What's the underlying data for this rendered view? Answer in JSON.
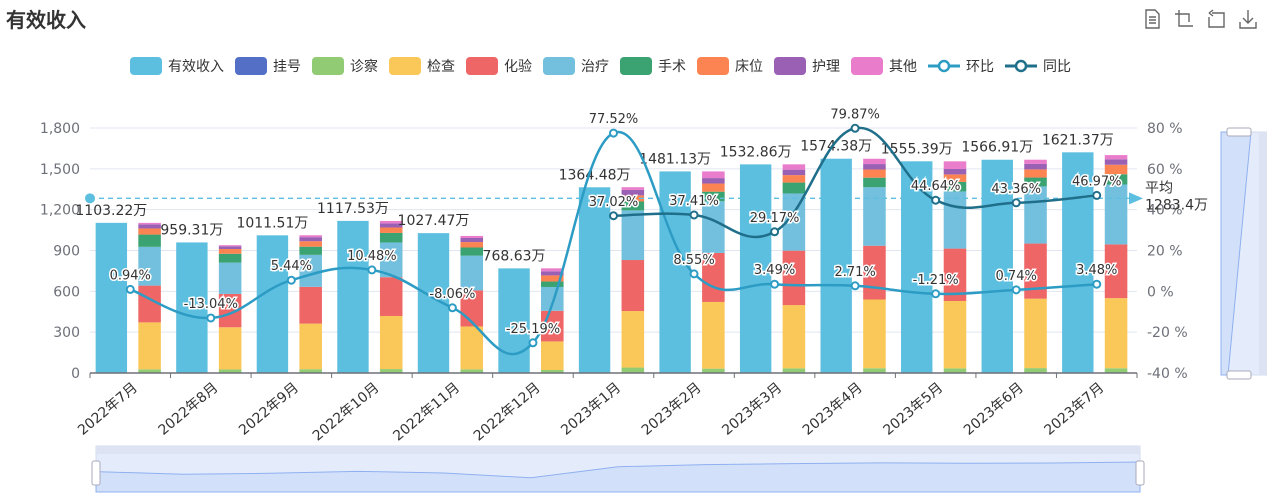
{
  "title": "有效收入",
  "toolbox": [
    {
      "name": "data-view-icon",
      "title": "数据视图"
    },
    {
      "name": "zoom-icon",
      "title": "区域缩放"
    },
    {
      "name": "zoom-reset-icon",
      "title": "区域缩放还原"
    },
    {
      "name": "save-image-icon",
      "title": "保存为图片"
    }
  ],
  "legend": [
    {
      "label": "有效收入",
      "color": "#5dbfdf",
      "type": "bar"
    },
    {
      "label": "挂号",
      "color": "#5470c6",
      "type": "bar"
    },
    {
      "label": "诊察",
      "color": "#91cc75",
      "type": "bar"
    },
    {
      "label": "检查",
      "color": "#fac858",
      "type": "bar"
    },
    {
      "label": "化验",
      "color": "#ee6666",
      "type": "bar"
    },
    {
      "label": "治疗",
      "color": "#73c0de",
      "type": "bar"
    },
    {
      "label": "手术",
      "color": "#3ba272",
      "type": "bar"
    },
    {
      "label": "床位",
      "color": "#fc8452",
      "type": "bar"
    },
    {
      "label": "护理",
      "color": "#9a60b4",
      "type": "bar"
    },
    {
      "label": "其他",
      "color": "#ea7ccc",
      "type": "bar"
    },
    {
      "label": "环比",
      "color": "#2d9cc4",
      "type": "line"
    },
    {
      "label": "同比",
      "color": "#1f6f8b",
      "type": "line"
    }
  ],
  "chart_data": {
    "type": "bar",
    "title": "有效收入",
    "categories": [
      "2022年7月",
      "2022年8月",
      "2022年9月",
      "2022年10月",
      "2022年11月",
      "2022年12月",
      "2023年1月",
      "2023年2月",
      "2023年3月",
      "2023年4月",
      "2023年5月",
      "2023年6月",
      "2023年7月"
    ],
    "yaxis_left": {
      "min": 0,
      "max": 1800,
      "ticks": [
        "0",
        "300",
        "600",
        "900",
        "1,200",
        "1,500",
        "1,800"
      ],
      "values": [
        0,
        300,
        600,
        900,
        1200,
        1500,
        1800
      ]
    },
    "yaxis_right": {
      "min": -40,
      "max": 80,
      "ticks": [
        "-40 %",
        "-20 %",
        "0 %",
        "20 %",
        "40 %",
        "60 %",
        "80 %"
      ],
      "values": [
        -40,
        -20,
        0,
        20,
        40,
        60,
        80
      ]
    },
    "grid": true,
    "legend_position": "top-center",
    "series": [
      {
        "name": "有效收入",
        "stack": "total",
        "values": [
          1103.22,
          959.31,
          1011.51,
          1117.53,
          1027.47,
          768.63,
          1364.48,
          1481.13,
          1532.86,
          1574.38,
          1555.39,
          1566.91,
          1621.37
        ],
        "labels": [
          "1103.22万",
          "959.31万",
          "1011.51万",
          "1117.53万",
          "1027.47万",
          "768.63万",
          "1364.48万",
          "1481.13万",
          "1532.86万",
          "1574.38万",
          "1555.39万",
          "1566.91万",
          "1621.37万"
        ]
      },
      {
        "name": "挂号",
        "stack": "detail",
        "values": [
          2,
          2,
          2,
          2,
          2,
          2,
          2,
          2,
          2,
          2,
          2,
          2,
          2
        ]
      },
      {
        "name": "诊察",
        "stack": "detail",
        "values": [
          25,
          24,
          26,
          27,
          25,
          20,
          38,
          30,
          32,
          33,
          32,
          34,
          33
        ]
      },
      {
        "name": "检查",
        "stack": "detail",
        "values": [
          345,
          310,
          335,
          390,
          315,
          210,
          415,
          490,
          465,
          505,
          495,
          510,
          515
        ]
      },
      {
        "name": "化验",
        "stack": "detail",
        "values": [
          270,
          245,
          270,
          285,
          265,
          225,
          375,
          360,
          400,
          395,
          385,
          405,
          395
        ]
      },
      {
        "name": "治疗",
        "stack": "detail",
        "values": [
          285,
          230,
          235,
          255,
          255,
          175,
          365,
          380,
          420,
          430,
          420,
          420,
          440
        ]
      },
      {
        "name": "手术",
        "stack": "detail",
        "values": [
          90,
          65,
          60,
          70,
          60,
          40,
          65,
          70,
          80,
          70,
          70,
          65,
          75
        ]
      },
      {
        "name": "床位",
        "stack": "detail",
        "values": [
          45,
          35,
          40,
          40,
          40,
          45,
          45,
          60,
          55,
          60,
          55,
          60,
          70
        ]
      },
      {
        "name": "护理",
        "stack": "detail",
        "values": [
          30,
          20,
          30,
          30,
          30,
          30,
          40,
          40,
          40,
          40,
          40,
          40,
          40
        ]
      },
      {
        "name": "其他",
        "stack": "detail",
        "values": [
          11,
          8,
          14,
          18,
          15,
          22,
          20,
          49,
          39,
          39,
          56,
          31,
          31
        ]
      },
      {
        "name": "环比",
        "axis": "right",
        "values": [
          0.94,
          -13.04,
          5.44,
          10.48,
          -8.06,
          -25.19,
          77.52,
          8.55,
          3.49,
          2.71,
          -1.21,
          0.74,
          3.48
        ],
        "labels": [
          "0.94%",
          "-13.04%",
          "5.44%",
          "10.48%",
          "-8.06%",
          "-25.19%",
          "77.52%",
          "8.55%",
          "3.49%",
          "2.71%",
          "-1.21%",
          "0.74%",
          "3.48%"
        ]
      },
      {
        "name": "同比",
        "axis": "right",
        "values": [
          null,
          null,
          null,
          null,
          null,
          null,
          37.02,
          37.41,
          29.17,
          79.87,
          44.64,
          43.36,
          46.97
        ],
        "labels": [
          "",
          "",
          "",
          "",
          "",
          "",
          "37.02%",
          "37.41%",
          "29.17%",
          "79.87%",
          "44.64%",
          "43.36%",
          "46.97%"
        ]
      }
    ],
    "markline": {
      "label_line1": "平均",
      "label_line2": "1283.4万",
      "value": 1283.4
    },
    "datazoom_x": {
      "start_percent": 0,
      "end_percent": 100
    },
    "datazoom_y": {
      "start_percent": 0,
      "end_percent": 100
    }
  }
}
